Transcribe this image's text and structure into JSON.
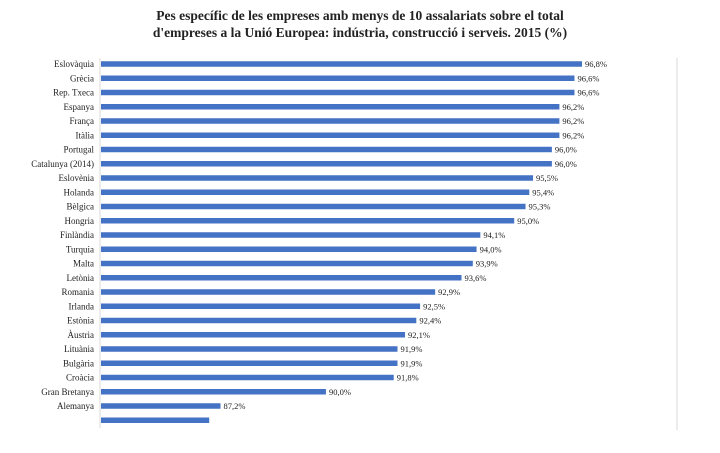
{
  "chart_data": {
    "type": "bar",
    "orientation": "horizontal",
    "title_lines": [
      "Pes específic de les empreses amb menys de 10 assalariats sobre el total",
      "d'empreses a la Unió Europea: indústria, construcció i serveis. 2015 (%)"
    ],
    "categories": [
      "Eslovàquia",
      "Grècia",
      "Rep. Txeca",
      "Espanya",
      "França",
      "Itàlia",
      "Portugal",
      "Catalunya (2014)",
      "Eslovènia",
      "Holanda",
      "Bèlgica",
      "Hongria",
      "Finlàndia",
      "Turquia",
      "Malta",
      "Letònia",
      "Romania",
      "Irlanda",
      "Estònia",
      "Àustria",
      "Lituània",
      "Bulgària",
      "Croàcia",
      "Gran Bretanya",
      "Alemanya",
      ""
    ],
    "values": [
      96.8,
      96.6,
      96.6,
      96.2,
      96.2,
      96.2,
      96.0,
      96.0,
      95.5,
      95.4,
      95.3,
      95.0,
      94.1,
      94.0,
      93.9,
      93.6,
      92.9,
      92.5,
      92.4,
      92.1,
      91.9,
      91.9,
      91.8,
      90.0,
      87.2,
      86.9
    ],
    "value_labels": [
      "96,8%",
      "96,6%",
      "96,6%",
      "96,2%",
      "96,2%",
      "96,2%",
      "96,0%",
      "96,0%",
      "95,5%",
      "95,4%",
      "95,3%",
      "95,0%",
      "94,1%",
      "94,0%",
      "93,9%",
      "93,6%",
      "92,9%",
      "92,5%",
      "92,4%",
      "92,1%",
      "91,9%",
      "91,9%",
      "91,8%",
      "90,0%",
      "87,2%",
      ""
    ],
    "xlim": [
      84,
      100
    ],
    "xlabel": "",
    "ylabel": "",
    "grid": false,
    "legend": "none",
    "bar_color": "#4472C4",
    "axis_color": "#D9D9D9",
    "text_color": "#222222"
  }
}
